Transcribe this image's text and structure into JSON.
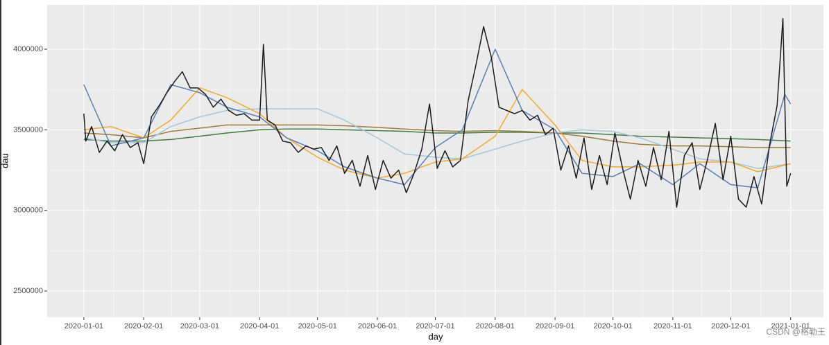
{
  "chart_data": {
    "type": "line",
    "x_label": "day",
    "y_label": "dau",
    "watermark": "CSDN @格勒王",
    "xlim": [
      "2019-12-13",
      "2021-01-18"
    ],
    "xticks": [
      "2020-01-01",
      "2020-02-01",
      "2020-03-01",
      "2020-04-01",
      "2020-05-01",
      "2020-06-01",
      "2020-07-01",
      "2020-08-01",
      "2020-09-01",
      "2020-10-01",
      "2020-11-01",
      "2020-12-01",
      "2021-01-01"
    ],
    "ylim": [
      2337000,
      4275000
    ],
    "yticks": [
      2500000,
      3000000,
      3500000,
      4000000
    ],
    "grid": true,
    "series": [
      {
        "color": "#1a1a1a",
        "x": [
          "2020-01-01",
          "2020-01-02",
          "2020-01-05",
          "2020-01-09",
          "2020-01-13",
          "2020-01-17",
          "2020-01-21",
          "2020-01-25",
          "2020-01-29",
          "2020-02-01",
          "2020-02-05",
          "2020-02-09",
          "2020-02-13",
          "2020-02-17",
          "2020-02-21",
          "2020-02-25",
          "2020-02-29",
          "2020-03-04",
          "2020-03-08",
          "2020-03-12",
          "2020-03-16",
          "2020-03-20",
          "2020-03-24",
          "2020-03-28",
          "2020-04-01",
          "2020-04-03",
          "2020-04-05",
          "2020-04-09",
          "2020-04-13",
          "2020-04-17",
          "2020-04-21",
          "2020-04-25",
          "2020-04-29",
          "2020-05-03",
          "2020-05-07",
          "2020-05-11",
          "2020-05-15",
          "2020-05-19",
          "2020-05-23",
          "2020-05-27",
          "2020-05-31",
          "2020-06-04",
          "2020-06-08",
          "2020-06-12",
          "2020-06-16",
          "2020-06-20",
          "2020-06-24",
          "2020-06-28",
          "2020-07-02",
          "2020-07-06",
          "2020-07-10",
          "2020-07-14",
          "2020-07-18",
          "2020-07-22",
          "2020-07-26",
          "2020-07-30",
          "2020-08-03",
          "2020-08-07",
          "2020-08-11",
          "2020-08-15",
          "2020-08-19",
          "2020-08-23",
          "2020-08-27",
          "2020-08-31",
          "2020-09-04",
          "2020-09-08",
          "2020-09-12",
          "2020-09-16",
          "2020-09-20",
          "2020-09-24",
          "2020-09-28",
          "2020-10-02",
          "2020-10-06",
          "2020-10-10",
          "2020-10-14",
          "2020-10-18",
          "2020-10-22",
          "2020-10-26",
          "2020-10-30",
          "2020-11-03",
          "2020-11-07",
          "2020-11-11",
          "2020-11-15",
          "2020-11-19",
          "2020-11-23",
          "2020-11-27",
          "2020-12-01",
          "2020-12-05",
          "2020-12-09",
          "2020-12-13",
          "2020-12-17",
          "2020-12-21",
          "2020-12-25",
          "2020-12-28",
          "2020-12-30",
          "2021-01-01"
        ],
        "values": [
          3600000,
          3430000,
          3520000,
          3360000,
          3430000,
          3370000,
          3470000,
          3390000,
          3420000,
          3290000,
          3580000,
          3650000,
          3730000,
          3800000,
          3860000,
          3760000,
          3760000,
          3720000,
          3640000,
          3690000,
          3620000,
          3590000,
          3600000,
          3560000,
          3560000,
          4030000,
          3560000,
          3530000,
          3430000,
          3420000,
          3360000,
          3400000,
          3380000,
          3390000,
          3310000,
          3400000,
          3230000,
          3310000,
          3150000,
          3340000,
          3130000,
          3310000,
          3200000,
          3250000,
          3110000,
          3230000,
          3380000,
          3660000,
          3260000,
          3370000,
          3270000,
          3310000,
          3680000,
          3900000,
          4140000,
          3950000,
          3640000,
          3620000,
          3600000,
          3620000,
          3560000,
          3590000,
          3470000,
          3510000,
          3250000,
          3400000,
          3200000,
          3450000,
          3130000,
          3340000,
          3160000,
          3480000,
          3260000,
          3070000,
          3310000,
          3150000,
          3390000,
          3190000,
          3490000,
          3020000,
          3340000,
          3420000,
          3130000,
          3320000,
          3540000,
          3190000,
          3460000,
          3070000,
          3020000,
          3210000,
          3040000,
          3400000,
          3650000,
          4190000,
          3150000,
          3230000
        ]
      },
      {
        "color": "#5b7db1",
        "x": [
          "2020-01-01",
          "2020-01-15",
          "2020-02-01",
          "2020-02-15",
          "2020-03-01",
          "2020-03-15",
          "2020-04-01",
          "2020-04-15",
          "2020-05-01",
          "2020-05-15",
          "2020-06-01",
          "2020-06-15",
          "2020-07-01",
          "2020-07-15",
          "2020-08-01",
          "2020-08-15",
          "2020-09-01",
          "2020-09-15",
          "2020-10-01",
          "2020-10-15",
          "2020-11-01",
          "2020-11-15",
          "2020-12-01",
          "2020-12-15",
          "2020-12-29",
          "2021-01-01"
        ],
        "values": [
          3780000,
          3400000,
          3450000,
          3780000,
          3730000,
          3640000,
          3580000,
          3450000,
          3370000,
          3270000,
          3200000,
          3160000,
          3390000,
          3500000,
          4000000,
          3620000,
          3500000,
          3230000,
          3210000,
          3290000,
          3160000,
          3290000,
          3160000,
          3140000,
          3720000,
          3660000
        ]
      },
      {
        "color": "#f0a830",
        "x": [
          "2020-01-01",
          "2020-01-15",
          "2020-02-01",
          "2020-02-15",
          "2020-03-01",
          "2020-03-15",
          "2020-04-01",
          "2020-04-15",
          "2020-05-01",
          "2020-05-15",
          "2020-06-01",
          "2020-06-15",
          "2020-07-01",
          "2020-07-15",
          "2020-08-01",
          "2020-08-15",
          "2020-09-01",
          "2020-09-15",
          "2020-10-01",
          "2020-10-15",
          "2020-11-01",
          "2020-11-15",
          "2020-12-01",
          "2020-12-15",
          "2021-01-01"
        ],
        "values": [
          3500000,
          3520000,
          3450000,
          3560000,
          3760000,
          3700000,
          3600000,
          3450000,
          3330000,
          3250000,
          3200000,
          3230000,
          3300000,
          3320000,
          3460000,
          3750000,
          3530000,
          3310000,
          3270000,
          3270000,
          3280000,
          3300000,
          3300000,
          3240000,
          3290000
        ]
      },
      {
        "color": "#a3c6d8",
        "x": [
          "2020-01-01",
          "2020-01-15",
          "2020-02-01",
          "2020-02-15",
          "2020-03-01",
          "2020-03-15",
          "2020-04-01",
          "2020-04-15",
          "2020-05-01",
          "2020-05-15",
          "2020-06-01",
          "2020-06-15",
          "2020-07-01",
          "2020-07-15",
          "2020-08-01",
          "2020-08-15",
          "2020-09-01",
          "2020-09-15",
          "2020-10-01",
          "2020-10-15",
          "2020-11-01",
          "2020-11-15",
          "2020-12-01",
          "2020-12-15",
          "2021-01-01"
        ],
        "values": [
          3450000,
          3420000,
          3420000,
          3520000,
          3580000,
          3620000,
          3630000,
          3630000,
          3630000,
          3560000,
          3450000,
          3350000,
          3330000,
          3320000,
          3380000,
          3430000,
          3480000,
          3500000,
          3490000,
          3450000,
          3380000,
          3320000,
          3300000,
          3260000,
          3290000
        ]
      },
      {
        "color": "#9b7a3c",
        "x": [
          "2020-01-01",
          "2020-01-15",
          "2020-02-01",
          "2020-02-15",
          "2020-03-01",
          "2020-03-15",
          "2020-04-01",
          "2020-04-15",
          "2020-05-01",
          "2020-05-15",
          "2020-06-01",
          "2020-06-15",
          "2020-07-01",
          "2020-07-15",
          "2020-08-01",
          "2020-08-15",
          "2020-09-01",
          "2020-09-15",
          "2020-10-01",
          "2020-10-15",
          "2020-11-01",
          "2020-11-15",
          "2020-12-01",
          "2020-12-15",
          "2021-01-01"
        ],
        "values": [
          3480000,
          3470000,
          3450000,
          3490000,
          3510000,
          3530000,
          3530000,
          3530000,
          3530000,
          3525000,
          3515000,
          3505000,
          3495000,
          3490000,
          3495000,
          3490000,
          3480000,
          3460000,
          3430000,
          3410000,
          3400000,
          3400000,
          3395000,
          3390000,
          3390000
        ]
      },
      {
        "color": "#3f7a45",
        "x": [
          "2020-01-01",
          "2020-01-15",
          "2020-02-01",
          "2020-02-15",
          "2020-03-01",
          "2020-03-15",
          "2020-04-01",
          "2020-04-15",
          "2020-05-01",
          "2020-05-15",
          "2020-06-01",
          "2020-06-15",
          "2020-07-01",
          "2020-07-15",
          "2020-08-01",
          "2020-08-15",
          "2020-09-01",
          "2020-09-15",
          "2020-10-01",
          "2020-10-15",
          "2020-11-01",
          "2020-11-15",
          "2020-12-01",
          "2020-12-15",
          "2021-01-01"
        ],
        "values": [
          3440000,
          3430000,
          3430000,
          3440000,
          3460000,
          3480000,
          3500000,
          3505000,
          3505000,
          3500000,
          3495000,
          3490000,
          3480000,
          3480000,
          3485000,
          3485000,
          3480000,
          3480000,
          3470000,
          3460000,
          3455000,
          3450000,
          3445000,
          3440000,
          3430000
        ]
      }
    ]
  }
}
